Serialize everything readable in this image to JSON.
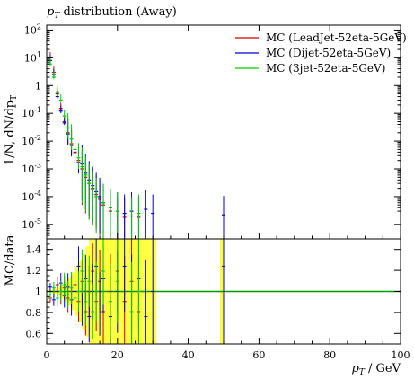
{
  "chart_data": {
    "type": "scatter",
    "title": "pT distribution (Away)",
    "title_parts": {
      "symbol": "p",
      "sub": "T",
      "rest": " distribution (Away)"
    },
    "xlabel": "pT / GeV",
    "xlabel_parts": {
      "symbol": "p",
      "sub": "T",
      "rest": " / GeV"
    },
    "ylabel": "1/N, dN/dpT",
    "ylabel_parts": {
      "main": "1/N, dN/dp",
      "sub": "T"
    },
    "ratio_ylabel": "MC/data",
    "xlim": [
      0,
      100
    ],
    "ylim": [
      3e-06,
      150
    ],
    "ylog": true,
    "ratio_ylim": [
      0.5,
      1.5
    ],
    "xticks": [
      "0",
      "20",
      "40",
      "60",
      "80",
      "100"
    ],
    "yticks": [
      {
        "m": "10",
        "e": "2",
        "v": 100
      },
      {
        "m": "10",
        "e": "1",
        "v": 10
      },
      {
        "m": "1",
        "e": "",
        "v": 1
      },
      {
        "m": "10",
        "e": "-1",
        "v": 0.1
      },
      {
        "m": "10",
        "e": "-2",
        "v": 0.01
      },
      {
        "m": "10",
        "e": "-3",
        "v": 0.001
      },
      {
        "m": "10",
        "e": "-4",
        "v": 0.0001
      },
      {
        "m": "10",
        "e": "-5",
        "v": 1e-05
      }
    ],
    "ratio_yticks": [
      "0.6",
      "0.8",
      "1",
      "1.2",
      "1.4"
    ],
    "legend_position": "top-right",
    "series": [
      {
        "name": "MC (LeadJet-52eta-5GeV)",
        "color": "#cc0000",
        "points": [
          [
            1,
            10
          ],
          [
            2,
            3
          ],
          [
            3,
            0.5
          ],
          [
            4,
            0.15
          ],
          [
            5,
            0.05
          ],
          [
            6,
            0.02
          ],
          [
            7,
            0.008
          ],
          [
            8,
            0.004
          ],
          [
            9,
            0.002
          ],
          [
            10,
            0.001
          ],
          [
            11,
            0.0005
          ],
          [
            12,
            0.0003
          ],
          [
            13,
            0.0002
          ],
          [
            14,
            0.00012
          ],
          [
            15,
            8e-05
          ],
          [
            16,
            5e-05
          ],
          [
            18,
            3e-05
          ],
          [
            20,
            2e-05
          ],
          [
            22,
            1.8e-05
          ],
          [
            24,
            2e-05
          ],
          [
            26,
            1.8e-05
          ]
        ]
      },
      {
        "name": "MC (Dijet-52eta-5GeV)",
        "color": "#0000cc",
        "points": [
          [
            1,
            8
          ],
          [
            2,
            2.5
          ],
          [
            3,
            0.4
          ],
          [
            4,
            0.12
          ],
          [
            5,
            0.045
          ],
          [
            6,
            0.018
          ],
          [
            7,
            0.007
          ],
          [
            8,
            0.0035
          ],
          [
            9,
            0.0017
          ],
          [
            10,
            0.0015
          ],
          [
            11,
            0.0007
          ],
          [
            12,
            0.0004
          ],
          [
            13,
            0.00025
          ],
          [
            14,
            0.00015
          ],
          [
            15,
            0.0001
          ],
          [
            16,
            6e-05
          ],
          [
            18,
            4e-05
          ],
          [
            20,
            3e-05
          ],
          [
            22,
            2.5e-05
          ],
          [
            24,
            3e-05
          ],
          [
            26,
            2e-05
          ],
          [
            28,
            3.5e-05
          ],
          [
            30,
            2.5e-05
          ],
          [
            50,
            2.2e-05
          ]
        ]
      },
      {
        "name": "MC (3jet-52eta-5GeV)",
        "color": "#00cc00",
        "points": [
          [
            1,
            6
          ],
          [
            2,
            2
          ],
          [
            3,
            0.6
          ],
          [
            4,
            0.3
          ],
          [
            5,
            0.08
          ],
          [
            6,
            0.03
          ],
          [
            7,
            0.012
          ],
          [
            8,
            0.005
          ],
          [
            9,
            0.0025
          ],
          [
            10,
            0.0012
          ],
          [
            11,
            0.0006
          ],
          [
            12,
            0.0003
          ],
          [
            13,
            0.00018
          ],
          [
            14,
            0.0001
          ],
          [
            16,
            6e-05
          ],
          [
            18,
            4e-05
          ],
          [
            20,
            3e-05
          ],
          [
            24,
            2e-05
          ],
          [
            26,
            2.5e-05
          ]
        ]
      }
    ]
  }
}
